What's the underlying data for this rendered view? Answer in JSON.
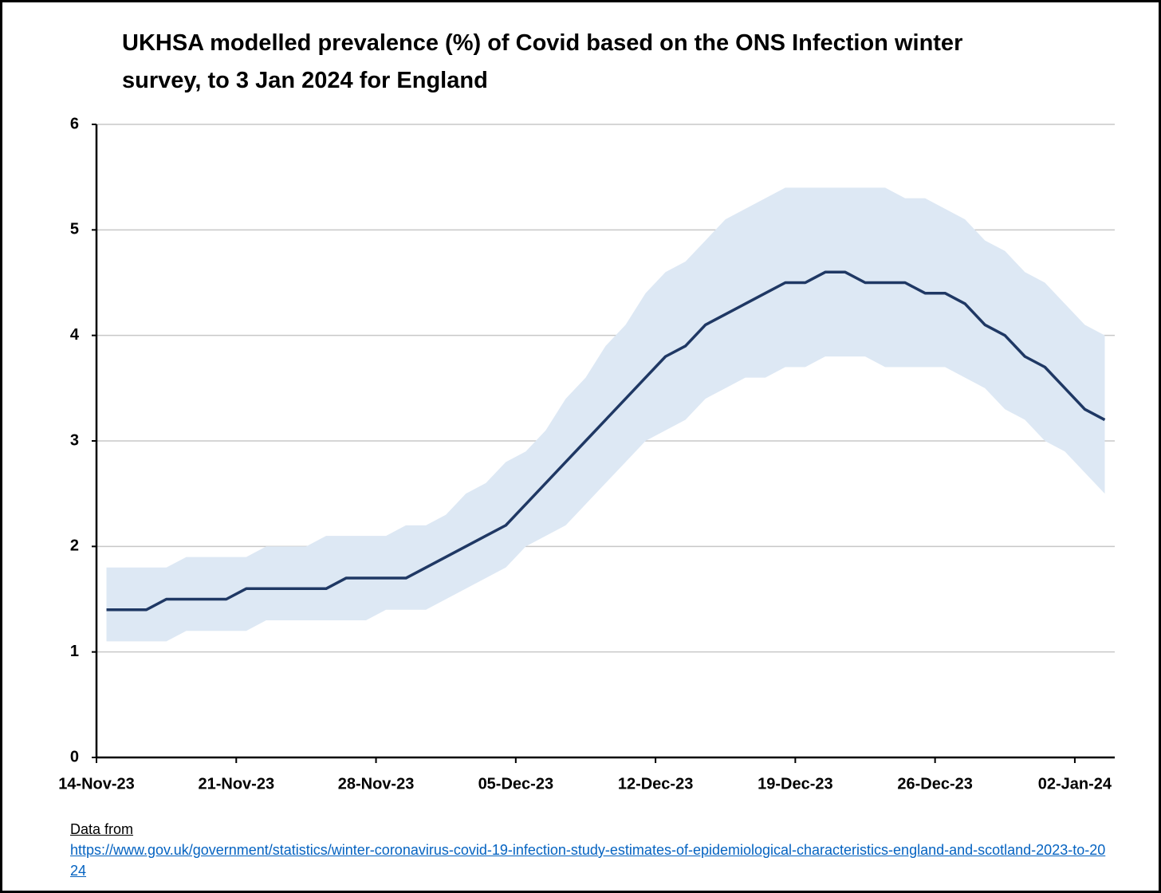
{
  "chart_data": {
    "type": "line",
    "title": "UKHSA modelled prevalence (%) of Covid based on the ONS Infection winter survey, to 3 Jan 2024 for England",
    "categories": [
      "14-Nov-23",
      null,
      null,
      null,
      null,
      null,
      null,
      "21-Nov-23",
      null,
      null,
      null,
      null,
      null,
      null,
      "28-Nov-23",
      null,
      null,
      null,
      null,
      null,
      null,
      "05-Dec-23",
      null,
      null,
      null,
      null,
      null,
      null,
      "12-Dec-23",
      null,
      null,
      null,
      null,
      null,
      null,
      "19-Dec-23",
      null,
      null,
      null,
      null,
      null,
      null,
      "26-Dec-23",
      null,
      null,
      null,
      null,
      null,
      null,
      "02-Jan-24",
      null
    ],
    "series": [
      {
        "color": "#1f3864",
        "values": [
          1.4,
          1.4,
          1.4,
          1.5,
          1.5,
          1.5,
          1.5,
          1.6,
          1.6,
          1.6,
          1.6,
          1.6,
          1.7,
          1.7,
          1.7,
          1.7,
          1.8,
          1.9,
          2.0,
          2.1,
          2.2,
          2.4,
          2.6,
          2.8,
          3.0,
          3.2,
          3.4,
          3.6,
          3.8,
          3.9,
          4.1,
          4.2,
          4.3,
          4.4,
          4.5,
          4.5,
          4.6,
          4.6,
          4.5,
          4.5,
          4.5,
          4.4,
          4.4,
          4.3,
          4.1,
          4.0,
          3.8,
          3.7,
          3.5,
          3.3,
          3.2
        ]
      }
    ],
    "band": {
      "color": "#dde8f4",
      "upper": [
        1.8,
        1.8,
        1.8,
        1.8,
        1.9,
        1.9,
        1.9,
        1.9,
        2.0,
        2.0,
        2.0,
        2.1,
        2.1,
        2.1,
        2.1,
        2.2,
        2.2,
        2.3,
        2.5,
        2.6,
        2.8,
        2.9,
        3.1,
        3.4,
        3.6,
        3.9,
        4.1,
        4.4,
        4.6,
        4.7,
        4.9,
        5.1,
        5.2,
        5.3,
        5.4,
        5.4,
        5.4,
        5.4,
        5.4,
        5.4,
        5.3,
        5.3,
        5.2,
        5.1,
        4.9,
        4.8,
        4.6,
        4.5,
        4.3,
        4.1,
        4.0
      ],
      "lower": [
        1.1,
        1.1,
        1.1,
        1.1,
        1.2,
        1.2,
        1.2,
        1.2,
        1.3,
        1.3,
        1.3,
        1.3,
        1.3,
        1.3,
        1.4,
        1.4,
        1.4,
        1.5,
        1.6,
        1.7,
        1.8,
        2.0,
        2.1,
        2.2,
        2.4,
        2.6,
        2.8,
        3.0,
        3.1,
        3.2,
        3.4,
        3.5,
        3.6,
        3.6,
        3.7,
        3.7,
        3.8,
        3.8,
        3.8,
        3.7,
        3.7,
        3.7,
        3.7,
        3.6,
        3.5,
        3.3,
        3.2,
        3.0,
        2.9,
        2.7,
        2.5
      ]
    },
    "ylim": [
      0,
      6
    ],
    "yticks": [
      0,
      1,
      2,
      3,
      4,
      5,
      6
    ],
    "grid": true,
    "source": {
      "label": "Data from",
      "url": "https://www.gov.uk/government/statistics/winter-coronavirus-covid-19-infection-study-estimates-of-epidemiological-characteristics-england-and-scotland-2023-to-2024"
    }
  }
}
